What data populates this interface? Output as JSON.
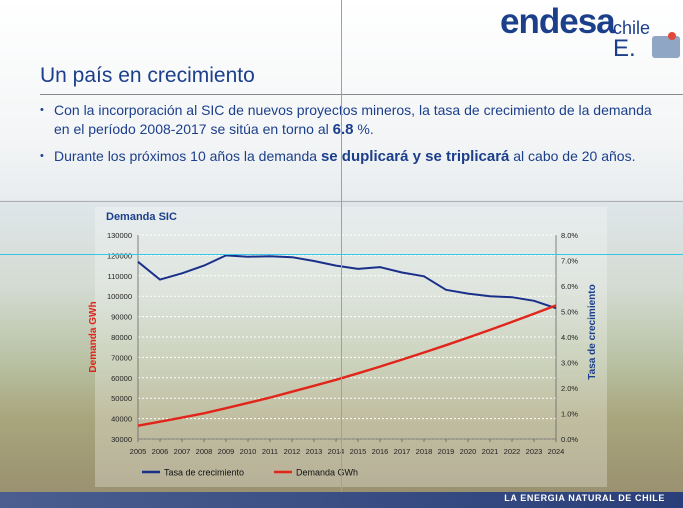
{
  "logo": {
    "word": "endesa",
    "country": "chile",
    "letter": "E."
  },
  "slide": {
    "title": "Un país en crecimiento",
    "bullets": [
      {
        "pre": "Con la incorporación al SIC de nuevos proyectos mineros, la tasa de crecimiento de la demanda en el período 2008-2017 se sitúa en torno al ",
        "emph": "6.8",
        "post": " %."
      },
      {
        "pre": "Durante los próximos 10 años la demanda ",
        "emph": "se duplicará y se triplicará",
        "post": " al cabo de 20 años."
      }
    ],
    "bullet_mark": "•"
  },
  "footer": {
    "text": "LA ENERGIA NATURAL DE CHILE"
  },
  "colors": {
    "brand_blue": "#1c3f8c",
    "tasa_line": "#1a2f8a",
    "demanda_line": "#e1251b"
  },
  "chart_data": {
    "type": "line",
    "title": "Demanda SIC",
    "ylabel": "Demanda GWh",
    "y2label": "Tasa de crecimiento",
    "x": [
      "2005",
      "2006",
      "2007",
      "2008",
      "2009",
      "2010",
      "2011",
      "2012",
      "2013",
      "2014",
      "2015",
      "2016",
      "2017",
      "2018",
      "2019",
      "2020",
      "2021",
      "2022",
      "2023",
      "2024"
    ],
    "ylim": [
      30000,
      130000
    ],
    "yticks": [
      "130000",
      "120000",
      "110000",
      "100000",
      "90000",
      "80000",
      "70000",
      "60000",
      "50000",
      "40000",
      "30000"
    ],
    "y2lim": [
      0,
      8
    ],
    "y2ticks": [
      "8.0%",
      "7.0%",
      "6.0%",
      "5.0%",
      "4.0%",
      "3.0%",
      "2.0%",
      "1.0%",
      "0.0%"
    ],
    "grid": true,
    "legend": "bottom",
    "series": [
      {
        "name": "Tasa de crecimiento",
        "axis": "right",
        "values": [
          6.95,
          6.25,
          6.5,
          6.8,
          7.2,
          7.15,
          7.17,
          7.13,
          6.98,
          6.8,
          6.67,
          6.74,
          6.53,
          6.38,
          5.85,
          5.7,
          5.6,
          5.56,
          5.42,
          5.13
        ]
      },
      {
        "name": "Demanda GWh",
        "axis": "left",
        "values": [
          36500,
          38500,
          40500,
          42600,
          45100,
          47700,
          50300,
          53200,
          56100,
          59000,
          62200,
          65500,
          68900,
          72400,
          76000,
          79700,
          83500,
          87400,
          91400,
          95500
        ]
      }
    ]
  }
}
